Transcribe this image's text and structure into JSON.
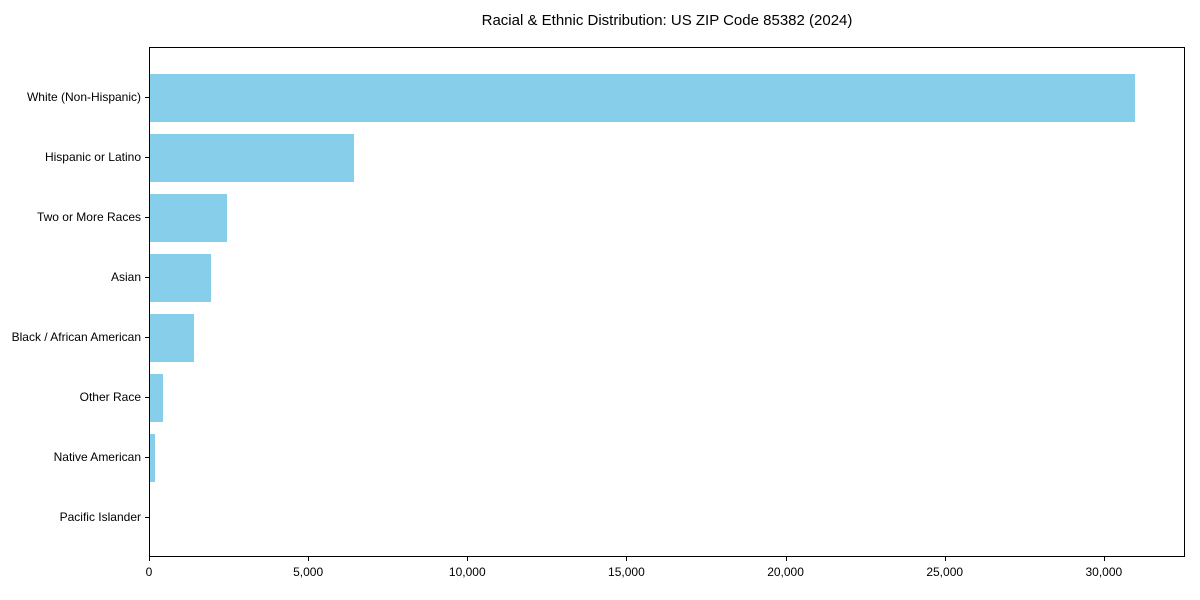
{
  "chart_data": {
    "type": "bar",
    "orientation": "horizontal",
    "title": "Racial & Ethnic Distribution: US ZIP Code 85382 (2024)",
    "categories": [
      "White (Non-Hispanic)",
      "Hispanic or Latino",
      "Two or More Races",
      "Asian",
      "Black / African American",
      "Other Race",
      "Native American",
      "Pacific Islander"
    ],
    "values": [
      31000,
      6430,
      2410,
      1910,
      1380,
      420,
      150,
      0
    ],
    "xlabel": "",
    "ylabel": "",
    "xlim": [
      0,
      32550
    ],
    "x_ticks": [
      0,
      5000,
      10000,
      15000,
      20000,
      25000,
      30000
    ],
    "x_tick_labels": [
      "0",
      "5,000",
      "10,000",
      "15,000",
      "20,000",
      "25,000",
      "30,000"
    ],
    "bar_color": "#87CEEB",
    "text_color": "#000000",
    "background": "#FFFFFF",
    "grid": false,
    "legend": null
  }
}
